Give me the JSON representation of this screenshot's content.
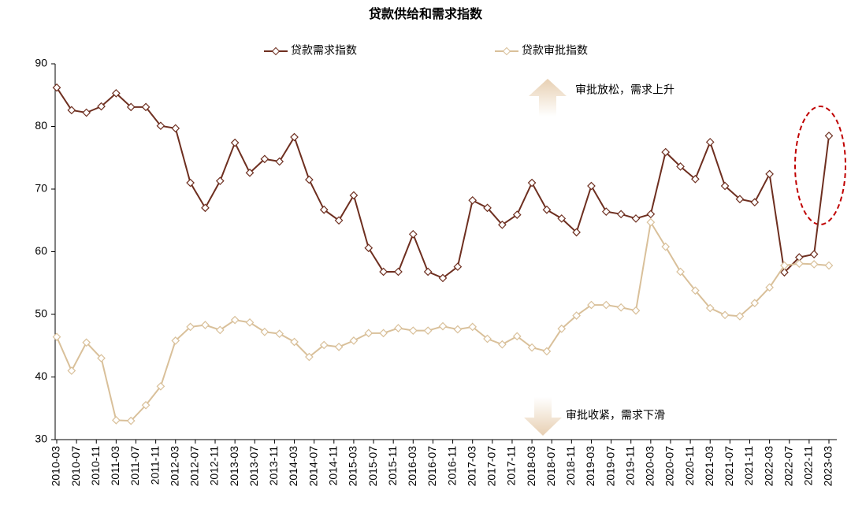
{
  "chart_data": {
    "type": "line",
    "title": "贷款供给和需求指数",
    "x": [
      "2010-03",
      "2010-06",
      "2010-09",
      "2010-12",
      "2011-03",
      "2011-06",
      "2011-09",
      "2011-12",
      "2012-03",
      "2012-06",
      "2012-09",
      "2012-12",
      "2013-03",
      "2013-06",
      "2013-09",
      "2013-12",
      "2014-03",
      "2014-06",
      "2014-09",
      "2014-12",
      "2015-03",
      "2015-06",
      "2015-09",
      "2015-12",
      "2016-03",
      "2016-06",
      "2016-09",
      "2016-12",
      "2017-03",
      "2017-06",
      "2017-09",
      "2017-12",
      "2018-03",
      "2018-06",
      "2018-09",
      "2018-12",
      "2019-03",
      "2019-06",
      "2019-09",
      "2019-12",
      "2020-03",
      "2020-06",
      "2020-09",
      "2020-12",
      "2021-03",
      "2021-06",
      "2021-09",
      "2021-12",
      "2022-03",
      "2022-06",
      "2022-09",
      "2022-12",
      "2023-03"
    ],
    "series": [
      {
        "name": "贷款需求指数",
        "color": "#6e2f20",
        "values": [
          86.2,
          82.6,
          82.2,
          83.2,
          85.3,
          83.1,
          83.1,
          80.1,
          79.7,
          71.0,
          67.0,
          71.3,
          77.4,
          72.6,
          74.8,
          74.4,
          78.3,
          71.5,
          66.7,
          65.0,
          69.0,
          60.6,
          56.8,
          56.8,
          62.8,
          56.8,
          55.8,
          57.6,
          68.2,
          67.0,
          64.3,
          65.9,
          71.0,
          66.7,
          65.3,
          63.1,
          70.5,
          66.4,
          66.0,
          65.3,
          66.0,
          75.9,
          73.6,
          71.6,
          77.5,
          70.5,
          68.4,
          67.9,
          72.4,
          56.7,
          59.1,
          59.6,
          78.5
        ]
      },
      {
        "name": "贷款审批指数",
        "color": "#d9c09a",
        "values": [
          46.4,
          41.0,
          45.5,
          43.0,
          33.1,
          33.0,
          35.5,
          38.5,
          45.8,
          48.0,
          48.3,
          47.5,
          49.1,
          48.7,
          47.2,
          46.9,
          45.6,
          43.2,
          45.1,
          44.8,
          45.8,
          47.0,
          47.0,
          47.8,
          47.4,
          47.4,
          48.1,
          47.6,
          48.0,
          46.1,
          45.2,
          46.5,
          44.7,
          44.1,
          47.7,
          49.8,
          51.5,
          51.5,
          51.1,
          50.6,
          64.7,
          60.8,
          56.8,
          53.8,
          51.0,
          49.9,
          49.7,
          51.8,
          54.3,
          57.8,
          58.1,
          58.0,
          57.8
        ]
      }
    ],
    "xlim": [
      "2010-03",
      "2023-03"
    ],
    "xticks": [
      "2010-03",
      "2010-07",
      "2010-11",
      "2011-03",
      "2011-07",
      "2011-11",
      "2012-03",
      "2012-07",
      "2012-11",
      "2013-03",
      "2013-07",
      "2013-11",
      "2014-03",
      "2014-07",
      "2014-11",
      "2015-03",
      "2015-07",
      "2015-11",
      "2016-03",
      "2016-07",
      "2016-11",
      "2017-03",
      "2017-07",
      "2017-11",
      "2018-03",
      "2018-07",
      "2018-11",
      "2019-03",
      "2019-07",
      "2019-11",
      "2020-03",
      "2020-07",
      "2020-11",
      "2021-03",
      "2021-07",
      "2021-11",
      "2022-03",
      "2022-07",
      "2022-11",
      "2023-03"
    ],
    "ylim": [
      30,
      90
    ],
    "yticks": [
      30,
      40,
      50,
      60,
      70,
      80,
      90
    ],
    "annotations": [
      {
        "text": "审批放松，需求上升",
        "color": "#c00000"
      },
      {
        "text": "审批收紧，需求下滑",
        "color": "#c00000"
      }
    ]
  }
}
